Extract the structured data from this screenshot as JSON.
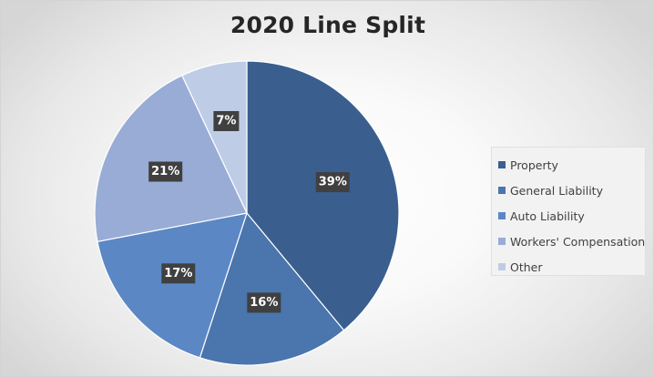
{
  "chart_data": {
    "type": "pie",
    "title": "2020 Line Split",
    "categories": [
      "Property",
      "General Liability",
      "Auto Liability",
      "Workers' Compensation",
      "Other"
    ],
    "values": [
      39,
      16,
      17,
      21,
      7
    ],
    "data_labels": [
      "39%",
      "16%",
      "17%",
      "21%",
      "7%"
    ],
    "colors": [
      "#3a5f8f",
      "#4a75ad",
      "#5b88c5",
      "#98acd6",
      "#bfcce6"
    ],
    "label_background": "#404040",
    "legend_position": "right"
  }
}
